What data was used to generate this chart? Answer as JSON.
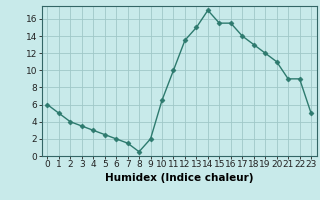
{
  "x": [
    0,
    1,
    2,
    3,
    4,
    5,
    6,
    7,
    8,
    9,
    10,
    11,
    12,
    13,
    14,
    15,
    16,
    17,
    18,
    19,
    20,
    21,
    22,
    23
  ],
  "y": [
    6,
    5,
    4,
    3.5,
    3,
    2.5,
    2,
    1.5,
    0.5,
    2,
    6.5,
    10,
    13.5,
    15,
    17,
    15.5,
    15.5,
    14,
    13,
    12,
    11,
    9,
    9,
    5
  ],
  "line_color": "#2d7a6e",
  "marker": "D",
  "marker_size": 2.5,
  "bg_color": "#c8eaea",
  "grid_color": "#a0c8c8",
  "xlabel": "Humidex (Indice chaleur)",
  "ylim": [
    0,
    17.5
  ],
  "xlim": [
    -0.5,
    23.5
  ],
  "yticks": [
    0,
    2,
    4,
    6,
    8,
    10,
    12,
    14,
    16
  ],
  "xticks": [
    0,
    1,
    2,
    3,
    4,
    5,
    6,
    7,
    8,
    9,
    10,
    11,
    12,
    13,
    14,
    15,
    16,
    17,
    18,
    19,
    20,
    21,
    22,
    23
  ],
  "xlabel_fontsize": 7.5,
  "tick_fontsize": 6.5
}
